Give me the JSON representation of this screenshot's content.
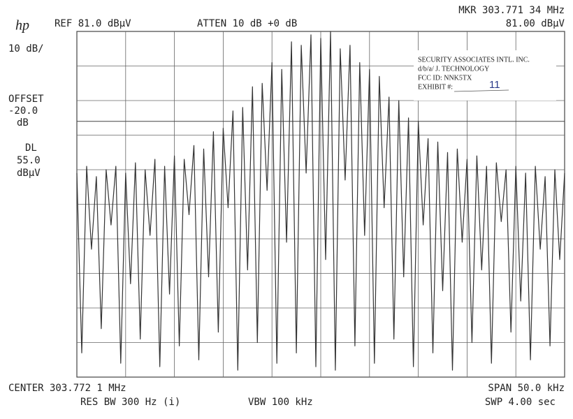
{
  "chart_data": {
    "type": "line",
    "logo": "hp",
    "ref": "REF  81.0 dBµV",
    "atten": "ATTEN 10 dB +0 dB",
    "marker_freq": "MKR 303.771 34 MHz",
    "marker_level": "81.00 dBµV",
    "scale": "10 dB/",
    "offset_label": "OFFSET",
    "offset_value": "-20.0",
    "offset_unit": "dB",
    "dl_label": "DL",
    "display_line": {
      "value": 55,
      "label": "55.0"
    },
    "dl_unit": "dBµV",
    "center": "CENTER 303.772 1 MHz",
    "span": "SPAN 50.0 kHz",
    "res_bw": "RES BW 300  Hz (i)",
    "vbw": "VBW 100 kHz",
    "sweep": "SWP 4.00  sec",
    "stamp": {
      "line1": "SECURITY ASSOCIATES INTL. INC.",
      "line2": "d/b/a/ J. TECHNOLOGY",
      "line3": "FCC ID:  NNK5TX",
      "line4": "EXHIBIT #:",
      "exhibit": "11"
    },
    "xlim": [
      -25,
      25
    ],
    "ylim": [
      -19,
      81
    ],
    "grid": true,
    "color": "#333333",
    "x": [
      -25,
      -24.5,
      -24,
      -23.5,
      -23,
      -22.5,
      -22,
      -21.5,
      -21,
      -20.5,
      -20,
      -19.5,
      -19,
      -18.5,
      -18,
      -17.5,
      -17,
      -16.5,
      -16,
      -15.5,
      -15,
      -14.5,
      -14,
      -13.5,
      -13,
      -12.5,
      -12,
      -11.5,
      -11,
      -10.5,
      -10,
      -9.5,
      -9,
      -8.5,
      -8,
      -7.5,
      -7,
      -6.5,
      -6,
      -5.5,
      -5,
      -4.5,
      -4,
      -3.5,
      -3,
      -2.5,
      -2,
      -1.5,
      -1,
      -0.5,
      0,
      0.5,
      1,
      1.5,
      2,
      2.5,
      3,
      3.5,
      4,
      4.5,
      5,
      5.5,
      6,
      6.5,
      7,
      7.5,
      8,
      8.5,
      9,
      9.5,
      10,
      10.5,
      11,
      11.5,
      12,
      12.5,
      13,
      13.5,
      14,
      14.5,
      15,
      15.5,
      16,
      16.5,
      17,
      17.5,
      18,
      18.5,
      19,
      19.5,
      20,
      20.5,
      21,
      21.5,
      22,
      22.5,
      23,
      23.5,
      24,
      24.5,
      25
    ],
    "values": [
      40,
      -12,
      42,
      18,
      39,
      -5,
      41,
      25,
      42,
      -15,
      40,
      8,
      43,
      -8,
      41,
      22,
      44,
      -16,
      42,
      5,
      45,
      -10,
      44,
      28,
      48,
      -14,
      47,
      10,
      52,
      -6,
      53,
      30,
      58,
      -17,
      59,
      12,
      65,
      -9,
      66,
      35,
      72,
      -15,
      70,
      20,
      78,
      -12,
      77,
      40,
      80,
      -16,
      79,
      15,
      81,
      -17,
      76,
      38,
      77,
      -10,
      72,
      22,
      70,
      -15,
      68,
      30,
      62,
      -8,
      61,
      10,
      56,
      -16,
      55,
      25,
      50,
      -12,
      49,
      6,
      46,
      -17,
      47,
      20,
      44,
      -9,
      45,
      12,
      42,
      -15,
      43,
      26,
      41,
      -6,
      42,
      3,
      40,
      -14,
      42,
      18,
      39,
      -10,
      41,
      15,
      40
    ]
  }
}
